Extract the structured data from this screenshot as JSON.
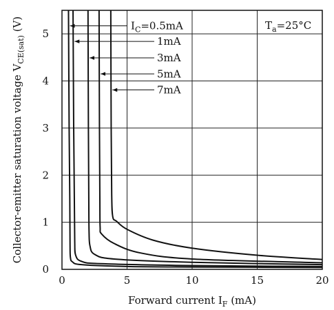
{
  "chart_data": {
    "type": "line",
    "xlabel": "Forward current I_F (mA)",
    "ylabel": "Collector-emitter saturation voltage V_CE(sat) (V)",
    "xlim": [
      0,
      20
    ],
    "ylim": [
      0,
      5.5
    ],
    "x_ticks": [
      "0",
      "5",
      "10",
      "15",
      "20"
    ],
    "y_ticks": [
      "0",
      "1",
      "2",
      "3",
      "4",
      "5"
    ],
    "grid": true,
    "condition": "Ta=25°C",
    "series": [
      {
        "name": "IC=0.5mA",
        "label": "I_C=0.5mA",
        "points": [
          [
            0.5,
            5.5
          ],
          [
            0.55,
            3.0
          ],
          [
            0.6,
            1.5
          ],
          [
            0.62,
            0.5
          ],
          [
            0.65,
            0.25
          ],
          [
            0.8,
            0.16
          ],
          [
            1.5,
            0.1
          ],
          [
            5,
            0.06
          ],
          [
            10,
            0.05
          ],
          [
            20,
            0.04
          ]
        ]
      },
      {
        "name": "1mA",
        "label": "1mA",
        "points": [
          [
            0.85,
            5.5
          ],
          [
            0.9,
            3.0
          ],
          [
            0.95,
            1.5
          ],
          [
            0.98,
            0.6
          ],
          [
            1.05,
            0.3
          ],
          [
            1.5,
            0.17
          ],
          [
            3,
            0.12
          ],
          [
            10,
            0.08
          ],
          [
            20,
            0.06
          ]
        ]
      },
      {
        "name": "3mA",
        "label": "3mA",
        "points": [
          [
            2.0,
            5.5
          ],
          [
            2.03,
            3.0
          ],
          [
            2.06,
            1.5
          ],
          [
            2.08,
            0.8
          ],
          [
            2.15,
            0.5
          ],
          [
            2.5,
            0.32
          ],
          [
            4,
            0.22
          ],
          [
            10,
            0.15
          ],
          [
            20,
            0.1
          ]
        ]
      },
      {
        "name": "5mA",
        "label": "5mA",
        "points": [
          [
            2.85,
            5.5
          ],
          [
            2.88,
            3.0
          ],
          [
            2.91,
            1.5
          ],
          [
            2.93,
            0.9
          ],
          [
            3.05,
            0.75
          ],
          [
            4,
            0.55
          ],
          [
            6,
            0.35
          ],
          [
            10,
            0.22
          ],
          [
            20,
            0.14
          ]
        ]
      },
      {
        "name": "7mA",
        "label": "7mA",
        "points": [
          [
            3.75,
            5.5
          ],
          [
            3.78,
            3.0
          ],
          [
            3.82,
            1.6
          ],
          [
            3.9,
            1.12
          ],
          [
            4.2,
            1.02
          ],
          [
            5,
            0.85
          ],
          [
            7,
            0.62
          ],
          [
            10,
            0.45
          ],
          [
            15,
            0.3
          ],
          [
            20,
            0.21
          ]
        ]
      }
    ]
  }
}
